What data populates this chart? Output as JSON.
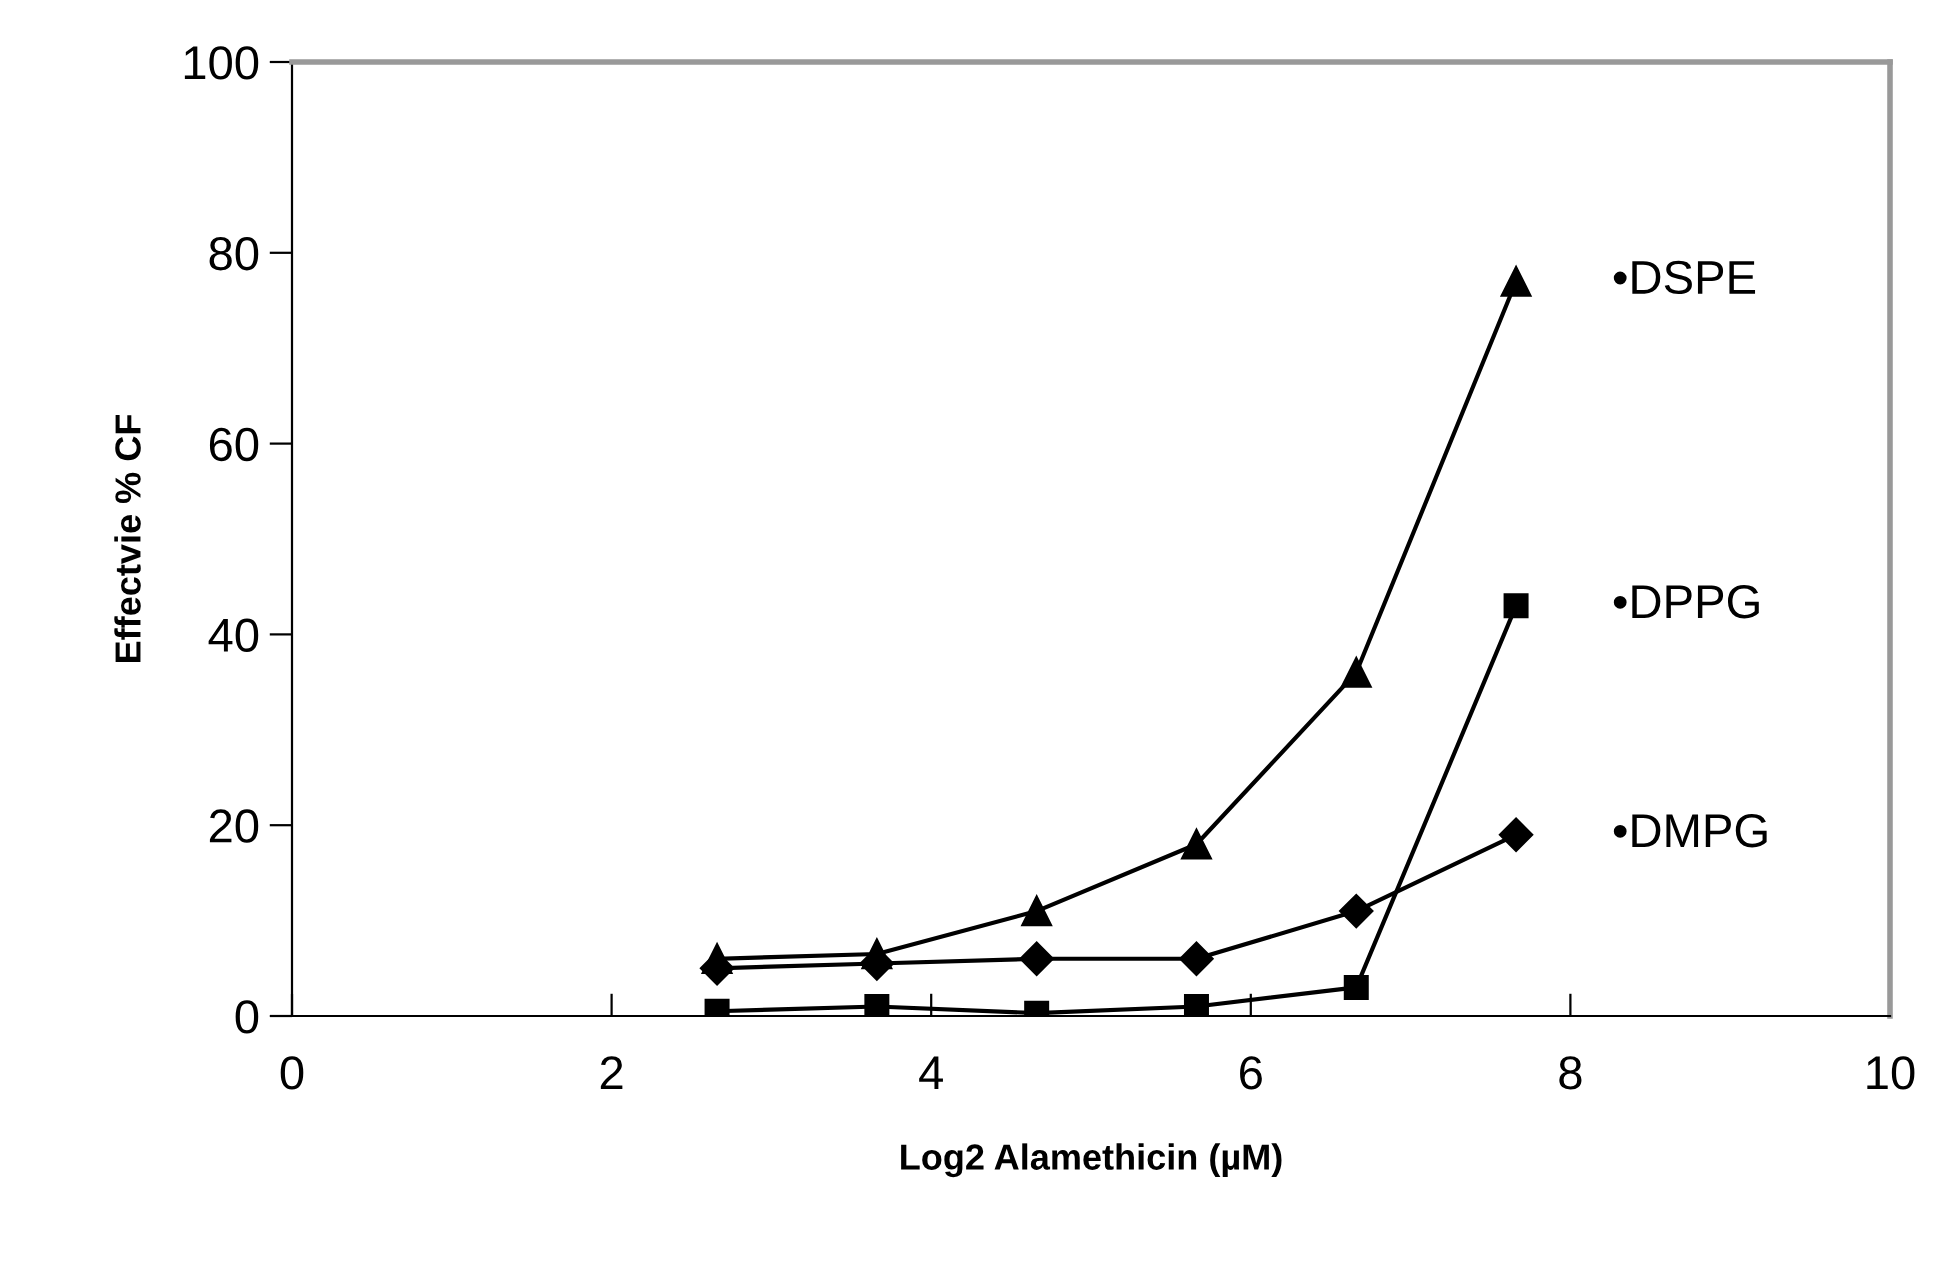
{
  "chart_data": {
    "type": "line",
    "xlabel": "Log2 Alamethicin (µM)",
    "ylabel": "Effectvie % CF",
    "xlim": [
      0,
      10
    ],
    "xticks": [
      0,
      2,
      4,
      6,
      8,
      10
    ],
    "ylim": [
      0,
      100
    ],
    "yticks": [
      0,
      20,
      40,
      60,
      80,
      100
    ],
    "grid": false,
    "legend": false,
    "x": [
      2.66,
      3.66,
      4.66,
      5.66,
      6.66,
      7.66
    ],
    "series": [
      {
        "name": "•DSPE",
        "color": "#000000",
        "marker": "triangle",
        "values": [
          6,
          6.5,
          11,
          18,
          36,
          77
        ]
      },
      {
        "name": "•DPPG",
        "color": "#000000",
        "marker": "square",
        "values": [
          0.5,
          1,
          0.3,
          1,
          3,
          43
        ]
      },
      {
        "name": "•DMPG",
        "color": "#000000",
        "marker": "diamond",
        "values": [
          5,
          5.5,
          6,
          6,
          11,
          19
        ]
      }
    ]
  }
}
